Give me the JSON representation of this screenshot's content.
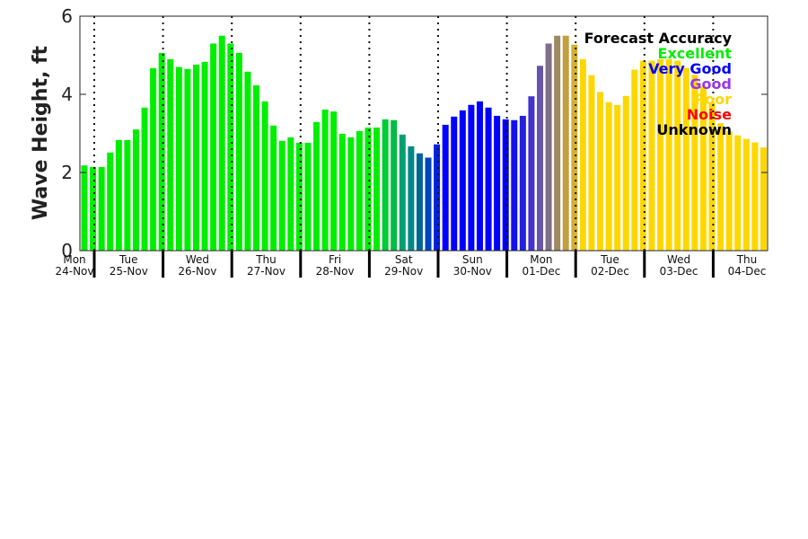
{
  "chart_data": {
    "type": "bar",
    "title": "",
    "xlabel": "",
    "ylabel": "Wave Height, ft",
    "ylim": [
      0,
      6
    ],
    "yticks": [
      "0",
      "2",
      "4",
      "6"
    ],
    "x_start": "Mon 24-Nov 21:00",
    "interval_hours": 3,
    "days": [
      {
        "day": "Mon",
        "date": "24-Nov"
      },
      {
        "day": "Tue",
        "date": "25-Nov"
      },
      {
        "day": "Wed",
        "date": "26-Nov"
      },
      {
        "day": "Thu",
        "date": "27-Nov"
      },
      {
        "day": "Fri",
        "date": "28-Nov"
      },
      {
        "day": "Sat",
        "date": "29-Nov"
      },
      {
        "day": "Sun",
        "date": "30-Nov"
      },
      {
        "day": "Mon",
        "date": "01-Dec"
      },
      {
        "day": "Tue",
        "date": "02-Dec"
      },
      {
        "day": "Wed",
        "date": "03-Dec"
      },
      {
        "day": "Thu",
        "date": "04-Dec"
      }
    ],
    "values": [
      2.18,
      2.14,
      2.14,
      2.51,
      2.83,
      2.83,
      3.1,
      3.66,
      4.67,
      5.06,
      4.9,
      4.7,
      4.65,
      4.76,
      4.83,
      5.3,
      5.5,
      5.3,
      5.06,
      4.58,
      4.23,
      3.82,
      3.2,
      2.81,
      2.9,
      2.76,
      2.76,
      3.29,
      3.61,
      3.56,
      2.99,
      2.9,
      3.06,
      3.15,
      3.15,
      3.36,
      3.34,
      2.97,
      2.67,
      2.49,
      2.38,
      2.72,
      3.22,
      3.43,
      3.59,
      3.73,
      3.82,
      3.66,
      3.45,
      3.36,
      3.34,
      3.45,
      3.95,
      4.73,
      5.3,
      5.5,
      5.5,
      5.27,
      4.9,
      4.49,
      4.06,
      3.8,
      3.73,
      3.96,
      4.63,
      4.86,
      4.86,
      4.9,
      4.9,
      4.86,
      4.68,
      4.5,
      4.2,
      3.8,
      3.26,
      3.06,
      2.95,
      2.86,
      2.77,
      2.64
    ],
    "colors": [
      "#00ee00",
      "#00ee00",
      "#00ee00",
      "#00ee00",
      "#00ee00",
      "#00ee00",
      "#00ee00",
      "#00ee00",
      "#00ee00",
      "#00ee00",
      "#00ee00",
      "#00ee00",
      "#00ee00",
      "#00ee00",
      "#00ee00",
      "#00ee00",
      "#00ee00",
      "#00ee00",
      "#00ee00",
      "#00ee00",
      "#00ee00",
      "#00ee00",
      "#00ee00",
      "#00ee00",
      "#00ee00",
      "#00ee00",
      "#00ee00",
      "#00ee00",
      "#00ee00",
      "#00ee00",
      "#00ee00",
      "#00ee00",
      "#00ee00",
      "#00ee00",
      "#00ee00",
      "#00cc33",
      "#00bb44",
      "#00a070",
      "#008888",
      "#006699",
      "#0044bb",
      "#0022dd",
      "#0000ff",
      "#0000ff",
      "#0000ff",
      "#0000ff",
      "#0000ff",
      "#0000ff",
      "#0000ff",
      "#0000ff",
      "#1111ee",
      "#2222dd",
      "#4433cc",
      "#6655aa",
      "#7f6f88",
      "#a08860",
      "#c0a040",
      "#d4b030",
      "#ffd700",
      "#ffd700",
      "#ffd700",
      "#ffd700",
      "#ffd700",
      "#ffd700",
      "#ffd700",
      "#ffd700",
      "#ffd700",
      "#ffd700",
      "#ffd700",
      "#ffd700",
      "#ffd700",
      "#ffd700",
      "#ffd700",
      "#ffd700",
      "#ffd700",
      "#ffd700",
      "#ffd700",
      "#ffd700",
      "#ffd700",
      "#ffd700"
    ],
    "legend": {
      "title": "Forecast Accuracy",
      "placement": "top-right",
      "entries": [
        {
          "label": "Excellent",
          "color": "#00ee00"
        },
        {
          "label": "Very Good",
          "color": "#0000ff"
        },
        {
          "label": "Good",
          "color": "#9933ee"
        },
        {
          "label": "Poor",
          "color": "#ffd700"
        },
        {
          "label": "Noise",
          "color": "#ff0000"
        },
        {
          "label": "Unknown",
          "color": "#000000"
        }
      ]
    }
  }
}
